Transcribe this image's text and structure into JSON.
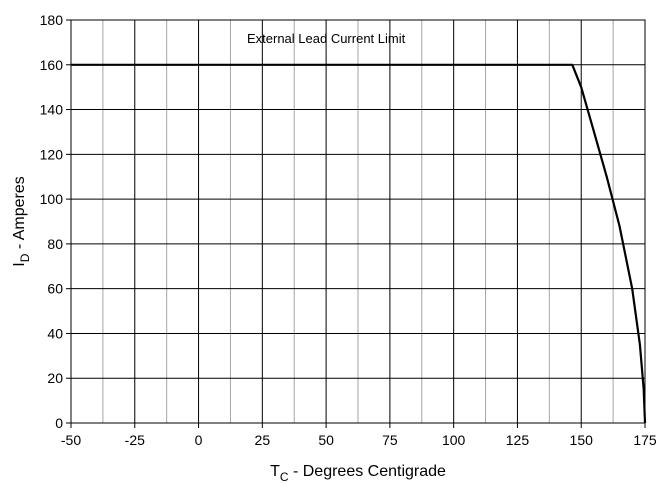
{
  "chart_data": {
    "type": "line",
    "title": "",
    "xlabel": {
      "main": "T",
      "sub": "C",
      "rest": " - Degrees Centigrade"
    },
    "ylabel": {
      "main": "I",
      "sub": "D",
      "rest": " - Amperes"
    },
    "xlim": [
      -50,
      175
    ],
    "ylim": [
      0,
      180
    ],
    "xticks": [
      -50,
      -25,
      0,
      25,
      50,
      75,
      100,
      125,
      150,
      175
    ],
    "yticks": [
      0,
      20,
      40,
      60,
      80,
      100,
      120,
      140,
      160,
      180
    ],
    "x_minor_step": 12.5,
    "y_grid_step": 20,
    "grid": true,
    "annotation": {
      "text": "External Lead Current Limit",
      "x": 50,
      "y": 172
    },
    "series": [
      {
        "points": [
          [
            -50,
            160
          ],
          [
            146.5,
            160
          ],
          [
            150,
            150
          ],
          [
            155,
            130
          ],
          [
            160,
            110
          ],
          [
            165,
            88
          ],
          [
            170,
            60
          ],
          [
            173,
            35
          ],
          [
            174.5,
            15
          ],
          [
            175,
            0
          ]
        ],
        "color": "#000000"
      }
    ]
  }
}
